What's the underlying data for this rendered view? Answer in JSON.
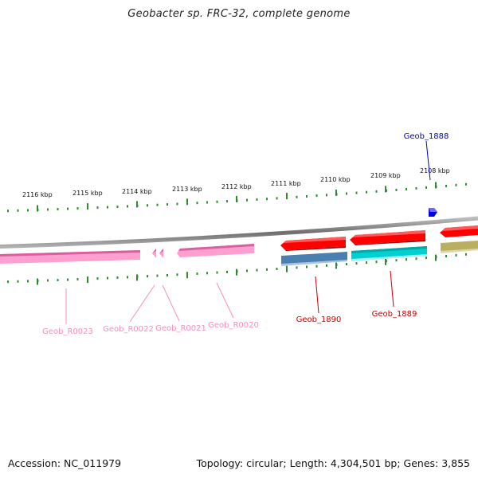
{
  "title": "Geobacter sp. FRC-32, complete genome",
  "footer": {
    "accession": "Accession: NC_011979",
    "summary": "Topology: circular; Length: 4,304,501 bp; Genes: 3,855"
  },
  "ticks": [
    {
      "label": "2116 kbp"
    },
    {
      "label": "2115 kbp"
    },
    {
      "label": "2114 kbp"
    },
    {
      "label": "2113 kbp"
    },
    {
      "label": "2112 kbp"
    },
    {
      "label": "2111 kbp"
    },
    {
      "label": "2110 kbp"
    },
    {
      "label": "2109 kbp"
    },
    {
      "label": "2108 kbp"
    }
  ],
  "genes": [
    {
      "label": "Geob_R0023",
      "color": "#f58fbf"
    },
    {
      "label": "Geob_R0022",
      "color": "#f58fbf"
    },
    {
      "label": "Geob_R0021",
      "color": "#f58fbf"
    },
    {
      "label": "Geob_R0020",
      "color": "#f58fbf"
    },
    {
      "label": "Geob_1890",
      "color": "#cc0000"
    },
    {
      "label": "Geob_1889",
      "color": "#cc0000"
    },
    {
      "label": "Geob_1888",
      "color": "#0000cc"
    }
  ],
  "colors": {
    "tick": "#2e8b2e",
    "backbone": "#8a8a8a",
    "rna": "#ff9fcf",
    "cds_forward": "#ff0000",
    "cds_blue": "#4a7fb0",
    "cds_cyan": "#00d0d0",
    "cds_olive": "#b8b060",
    "cds_small": "#0000ee"
  }
}
